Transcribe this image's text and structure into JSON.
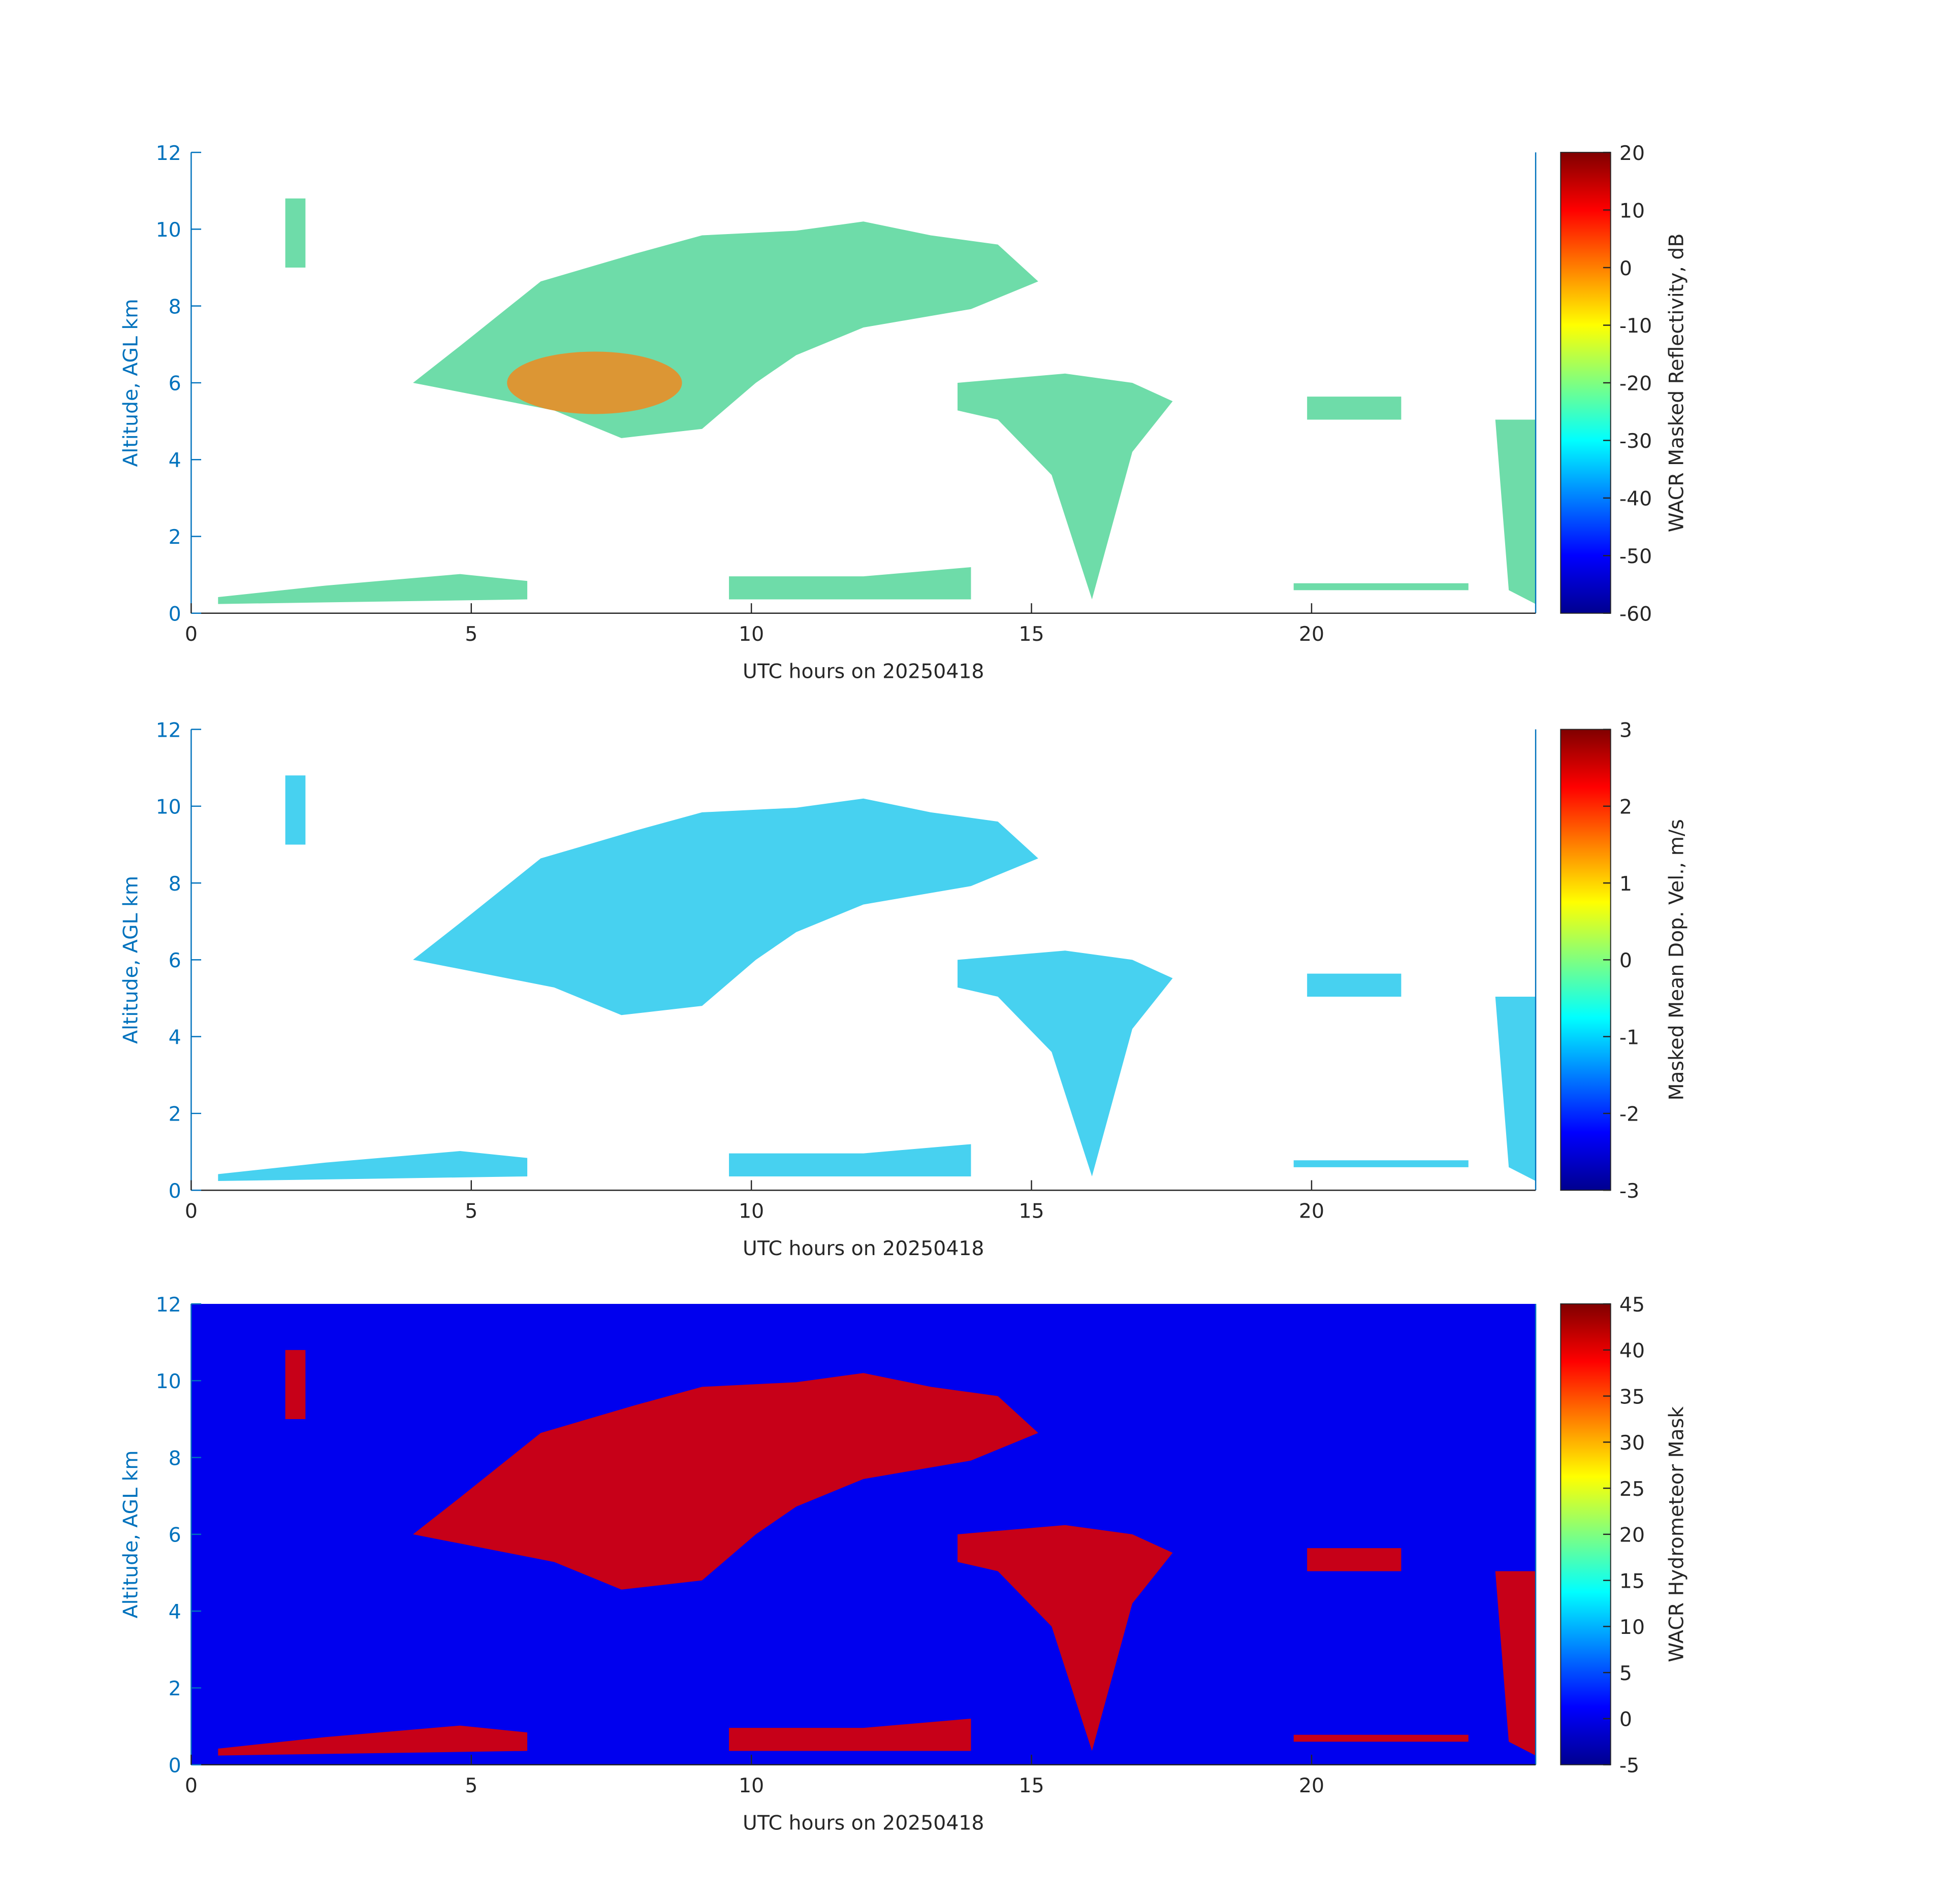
{
  "chart_data": [
    {
      "type": "heatmap",
      "ylabel": "Altitude, AGL km",
      "xlabel": "UTC hours on 20250418",
      "xlim": [
        0,
        24
      ],
      "xticks": [
        0,
        5,
        10,
        15,
        20
      ],
      "ylim": [
        0,
        12
      ],
      "yticks": [
        0,
        2,
        4,
        6,
        8,
        10,
        12
      ],
      "colormap": "jet",
      "colorbar_label": "WACR Masked Reflectivity, dB",
      "clim": [
        -60,
        20
      ],
      "cticks": [
        -60,
        -50,
        -40,
        -30,
        -20,
        -10,
        0,
        10,
        20
      ]
    },
    {
      "type": "heatmap",
      "ylabel": "Altitude, AGL km",
      "xlabel": "UTC hours on 20250418",
      "xlim": [
        0,
        24
      ],
      "xticks": [
        0,
        5,
        10,
        15,
        20
      ],
      "ylim": [
        0,
        12
      ],
      "yticks": [
        0,
        2,
        4,
        6,
        8,
        10,
        12
      ],
      "colormap": "jet",
      "colorbar_label": "Masked Mean Dop. Vel., m/s",
      "clim": [
        -3,
        3
      ],
      "cticks": [
        -3,
        -2,
        -1,
        0,
        1,
        2,
        3
      ]
    },
    {
      "type": "heatmap",
      "ylabel": "Altitude, AGL km",
      "xlabel": "UTC hours on 20250418",
      "xlim": [
        0,
        24
      ],
      "xticks": [
        0,
        5,
        10,
        15,
        20
      ],
      "ylim": [
        0,
        12
      ],
      "yticks": [
        0,
        2,
        4,
        6,
        8,
        10,
        12
      ],
      "colormap": "jet",
      "colorbar_label": "WACR Hydrometeor Mask",
      "clim": [
        -5,
        45
      ],
      "cticks": [
        -5,
        0,
        5,
        10,
        15,
        20,
        25,
        30,
        35,
        40,
        45
      ]
    }
  ]
}
